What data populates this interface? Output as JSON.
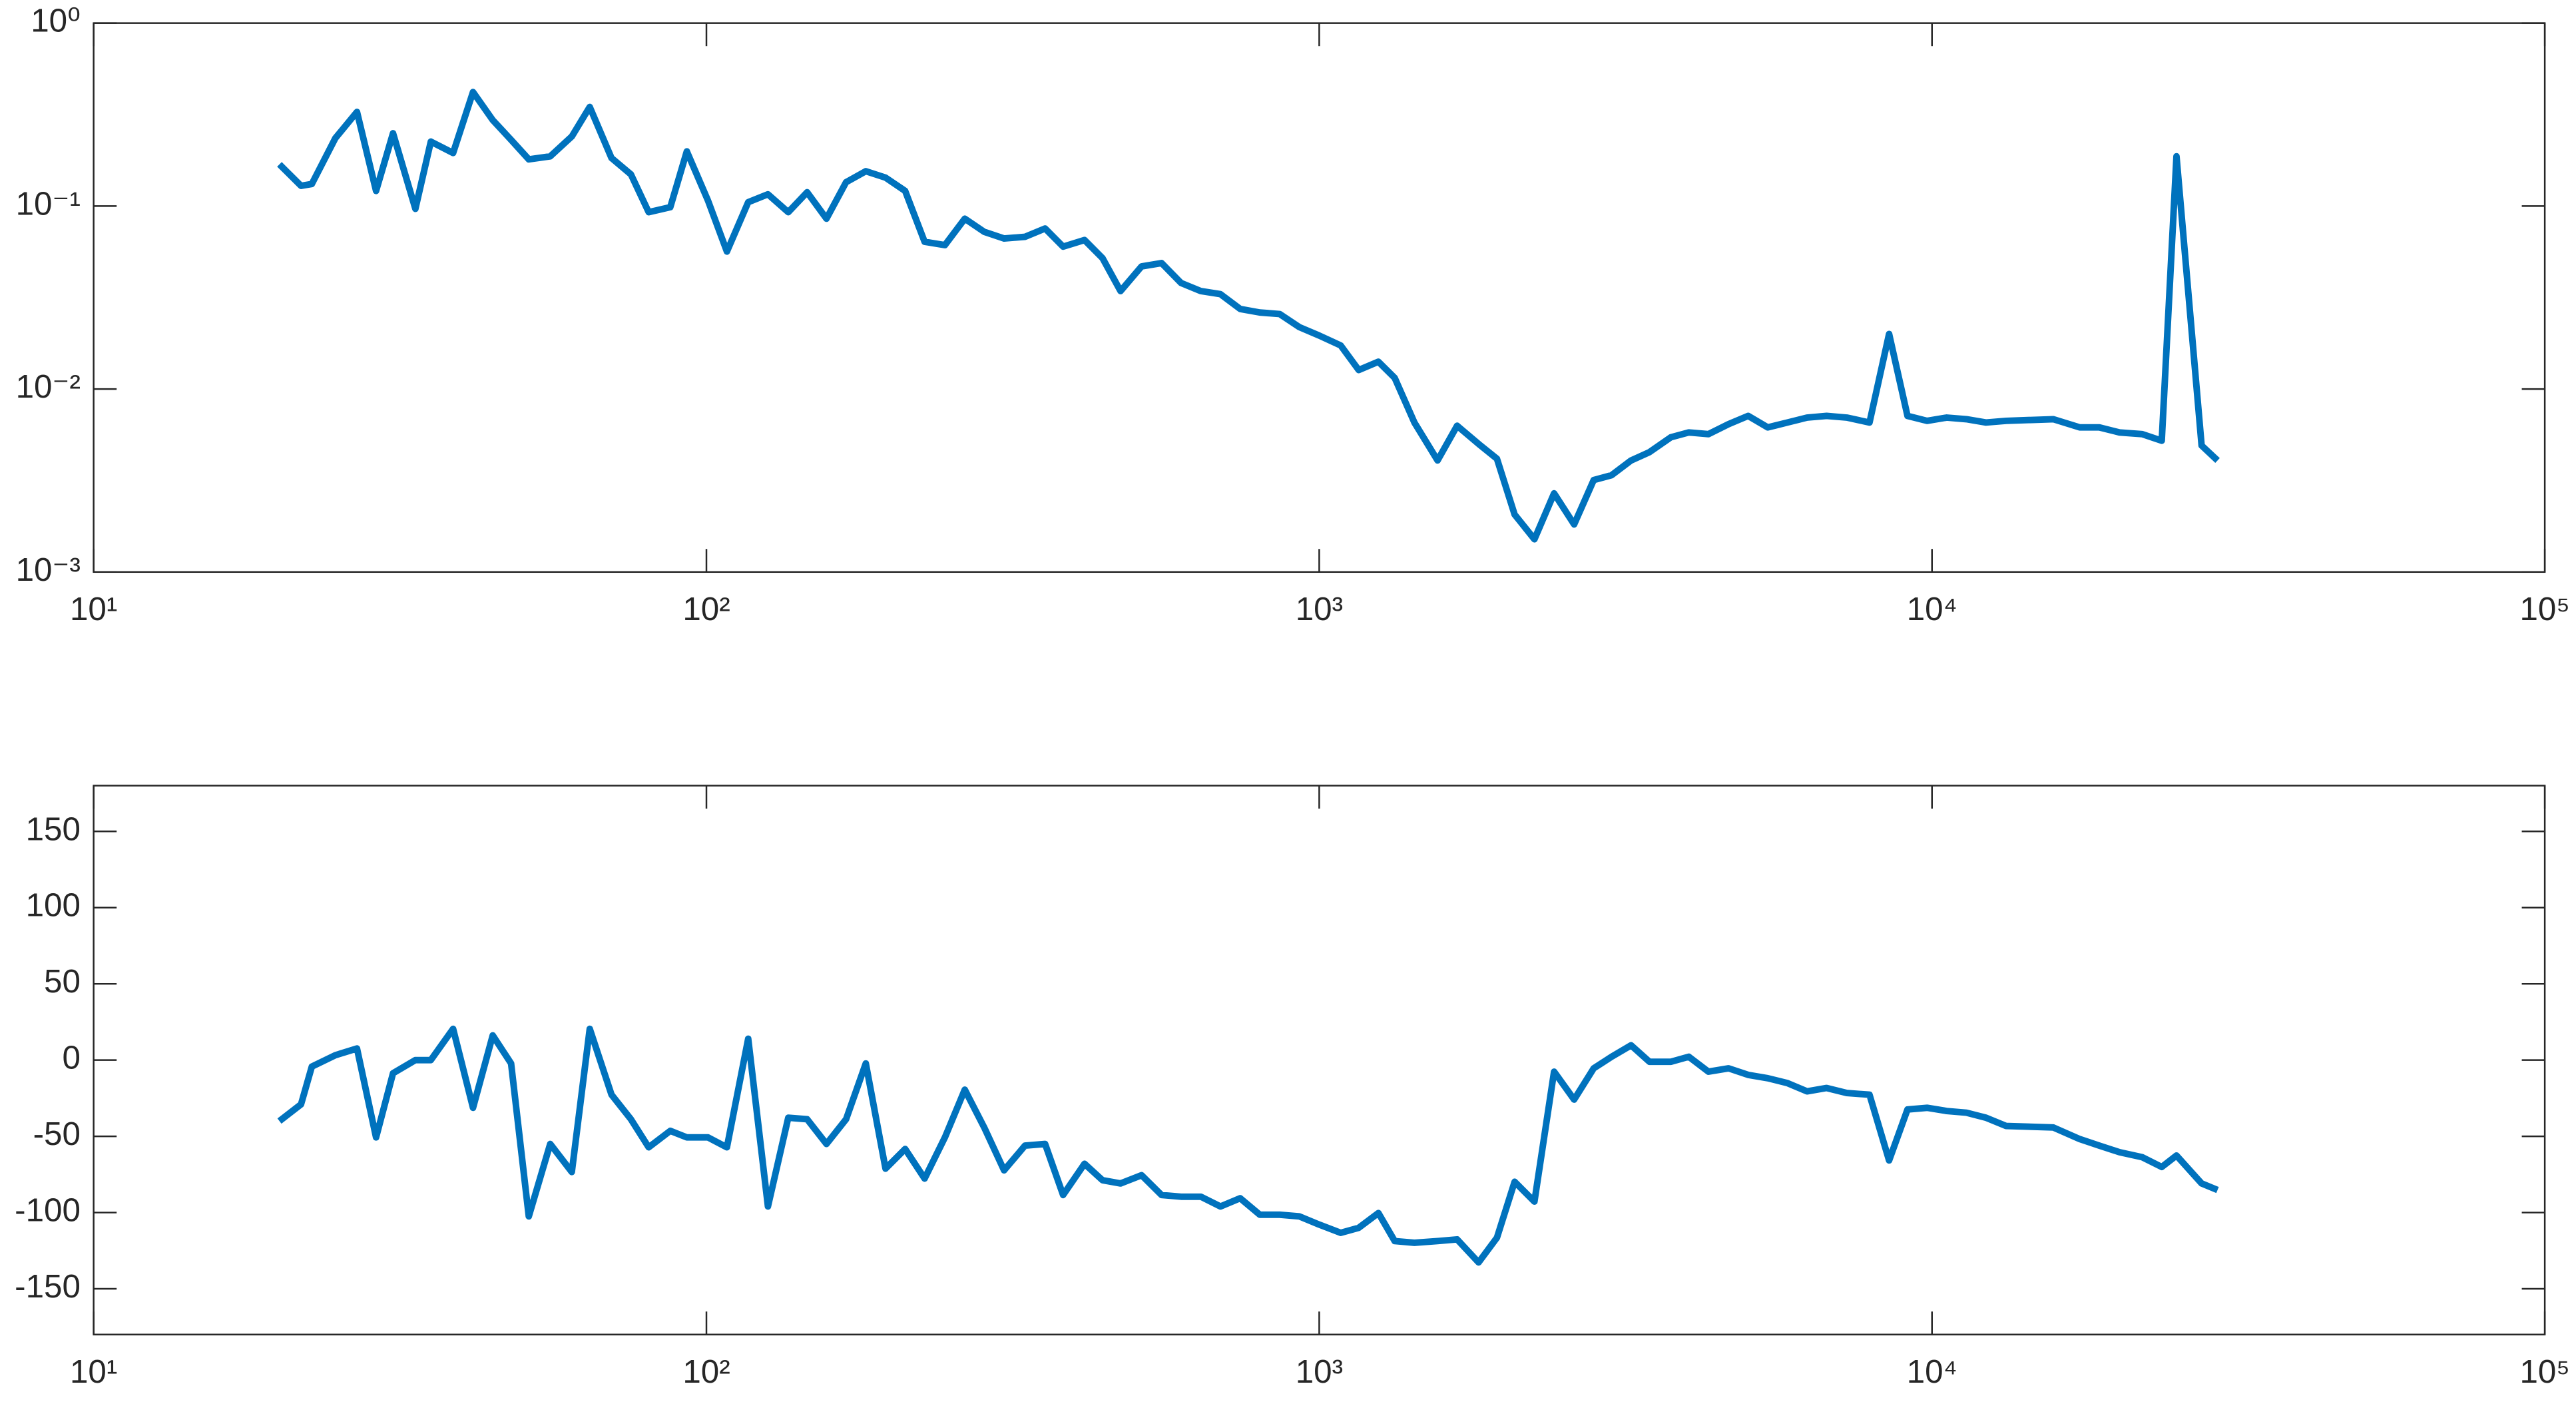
{
  "chart_data": [
    {
      "type": "line",
      "xscale": "log",
      "yscale": "log",
      "box": true,
      "x": [
        20.1,
        21.8,
        22.7,
        24.8,
        26.9,
        28.9,
        30.8,
        33.5,
        35.5,
        38.6,
        41.6,
        44.8,
        48.0,
        51.3,
        55.6,
        60.3,
        64.5,
        70.0,
        75.3,
        80.5,
        87.3,
        92.9,
        100.6,
        108,
        117,
        126,
        136,
        146,
        157,
        169,
        182,
        196,
        211,
        227,
        245,
        264,
        284,
        306,
        331,
        357,
        382,
        414,
        443,
        474,
        513,
        553,
        595,
        641,
        690,
        743,
        800,
        862,
        928,
        1000,
        1084,
        1160,
        1249,
        1328,
        1430,
        1560,
        1679,
        1820,
        1950,
        2084,
        2245,
        2417,
        2606,
        2805,
        3000,
        3228,
        3459,
        3750,
        4010,
        4317,
        4656,
        5012,
        5395,
        5808,
        6252,
        6730,
        7261,
        7907,
        8511,
        9120,
        9817,
        10570,
        11380,
        12250,
        13210,
        15780,
        17420,
        18750,
        20230,
        22030,
        23710,
        25060,
        27540,
        29240
      ],
      "series": [
        {
          "color": "#0072BD",
          "values": [
            0.169,
            0.129,
            0.132,
            0.235,
            0.327,
            0.121,
            0.25,
            0.0966,
            0.225,
            0.195,
            0.42,
            0.295,
            0.23,
            0.18,
            0.187,
            0.24,
            0.348,
            0.183,
            0.149,
            0.0926,
            0.0986,
            0.199,
            0.107,
            0.0564,
            0.105,
            0.116,
            0.0926,
            0.119,
            0.0853,
            0.135,
            0.155,
            0.143,
            0.121,
            0.0638,
            0.0612,
            0.0853,
            0.0723,
            0.0665,
            0.0679,
            0.0754,
            0.06,
            0.0652,
            0.0519,
            0.0343,
            0.0468,
            0.0488,
            0.038,
            0.0343,
            0.033,
            0.0274,
            0.0262,
            0.0257,
            0.0218,
            0.0196,
            0.0173,
            0.0127,
            0.0141,
            0.0115,
            0.00656,
            0.00407,
            0.0063,
            0.00501,
            0.00416,
            0.00206,
            0.00151,
            0.00269,
            0.00182,
            0.00318,
            0.00338,
            0.00407,
            0.00452,
            0.00545,
            0.00579,
            0.00567,
            0.00643,
            0.00713,
            0.00617,
            0.00656,
            0.00698,
            0.00713,
            0.00698,
            0.00656,
            0.02,
            0.00713,
            0.0067,
            0.00698,
            0.00684,
            0.00656,
            0.0067,
            0.00684,
            0.00617,
            0.00617,
            0.00579,
            0.00567,
            0.00522,
            0.187,
            0.00491,
            0.00407
          ]
        }
      ],
      "xlim": [
        10,
        100000
      ],
      "xticks": [
        {
          "value": 10,
          "label": "10¹"
        },
        {
          "value": 100,
          "label": "10²"
        },
        {
          "value": 1000,
          "label": "10³"
        },
        {
          "value": 10000,
          "label": "10⁴"
        },
        {
          "value": 100000,
          "label": "10⁵"
        }
      ],
      "ylim": [
        0.001,
        1
      ],
      "yticks": [
        {
          "value": 0.001,
          "label": "10⁻³"
        },
        {
          "value": 0.01,
          "label": "10⁻²"
        },
        {
          "value": 0.1,
          "label": "10⁻¹"
        },
        {
          "value": 1,
          "label": "10⁰"
        }
      ]
    },
    {
      "type": "line",
      "xscale": "log",
      "yscale": "linear",
      "box": true,
      "x": [
        20.1,
        21.8,
        22.7,
        24.8,
        26.9,
        28.9,
        30.8,
        33.5,
        35.5,
        38.6,
        41.6,
        44.8,
        48.0,
        51.3,
        55.6,
        60.3,
        64.5,
        70.0,
        75.3,
        80.5,
        87.3,
        92.9,
        100.6,
        108,
        117,
        126,
        136,
        146,
        157,
        169,
        182,
        196,
        211,
        227,
        245,
        264,
        284,
        306,
        331,
        357,
        382,
        414,
        443,
        474,
        513,
        553,
        595,
        641,
        690,
        743,
        800,
        862,
        928,
        1000,
        1084,
        1160,
        1249,
        1328,
        1430,
        1560,
        1679,
        1820,
        1950,
        2084,
        2245,
        2417,
        2606,
        2805,
        3000,
        3228,
        3459,
        3750,
        4010,
        4317,
        4656,
        5012,
        5395,
        5808,
        6252,
        6730,
        7261,
        7907,
        8511,
        9120,
        9817,
        10570,
        11380,
        12250,
        13210,
        15780,
        17420,
        18750,
        20230,
        22030,
        23710,
        25060,
        27540,
        29240
      ],
      "series": [
        {
          "color": "#0072BD",
          "values": [
            -40,
            -29,
            -4.3,
            3.2,
            7.6,
            -50.7,
            -8.6,
            0,
            0,
            20.5,
            -31.3,
            16.2,
            -2.2,
            -102.5,
            -55,
            -73.4,
            20.5,
            -22.7,
            -38.8,
            -57.2,
            -46.4,
            -50.7,
            -50.7,
            -57.2,
            14,
            -96,
            -37.8,
            -38.8,
            -55,
            -38.8,
            -2.2,
            -71.2,
            -58.3,
            -77.7,
            -50.7,
            -19.4,
            -44.2,
            -72.3,
            -56.1,
            -55,
            -88.5,
            -68,
            -78.8,
            -80.9,
            -75.5,
            -88.5,
            -89.6,
            -89.6,
            -96,
            -90.6,
            -101.4,
            -101.4,
            -102.5,
            -107.9,
            -113.3,
            -110,
            -100.3,
            -118.7,
            -119.8,
            -118.7,
            -117.6,
            -132.7,
            -116.5,
            -79.8,
            -92.8,
            -7.6,
            -25.9,
            -5.4,
            2.2,
            9.7,
            -1.1,
            -1.1,
            2.2,
            -7.6,
            -5.4,
            -9.7,
            -11.9,
            -15.1,
            -20.5,
            -18.3,
            -21.6,
            -22.7,
            -65.8,
            -32.4,
            -31.3,
            -33.4,
            -34.5,
            -37.8,
            -43.2,
            -44.2,
            -51.8,
            -56.1,
            -60.4,
            -63.7,
            -70.1,
            -62.6,
            -80.9,
            -85.2
          ]
        }
      ],
      "xlim": [
        10,
        100000
      ],
      "xticks": [
        {
          "value": 10,
          "label": "10¹"
        },
        {
          "value": 100,
          "label": "10²"
        },
        {
          "value": 1000,
          "label": "10³"
        },
        {
          "value": 10000,
          "label": "10⁴"
        },
        {
          "value": 100000,
          "label": "10⁵"
        }
      ],
      "ylim": [
        -180,
        180
      ],
      "yticks": [
        -150,
        -100,
        -50,
        0,
        50,
        100,
        150
      ]
    }
  ]
}
